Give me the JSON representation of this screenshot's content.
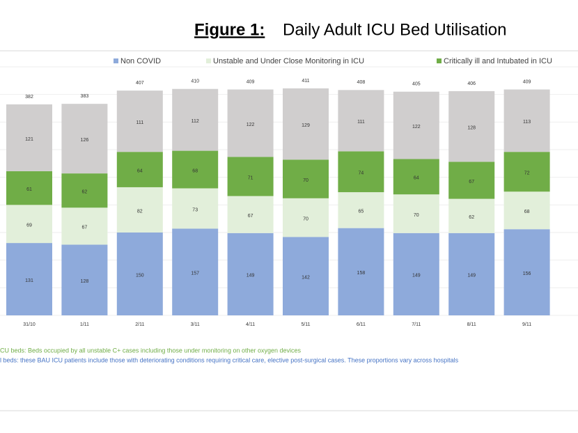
{
  "chart_data": {
    "type": "stacked_bar",
    "title_label": "Figure 1:",
    "title": "Daily Adult ICU Bed Utilisation",
    "categories": [
      "31/10",
      "1/11",
      "2/11",
      "3/11",
      "4/11",
      "5/11",
      "6/11",
      "7/11",
      "8/11",
      "9/11"
    ],
    "series": [
      {
        "name": "Non COVID",
        "color": "#8eaadb",
        "values": [
          131,
          128,
          150,
          157,
          149,
          142,
          158,
          149,
          149,
          156
        ]
      },
      {
        "name": "Unstable and Under Close Monitoring in ICU",
        "color": "#e2efda",
        "values": [
          69,
          67,
          82,
          73,
          67,
          70,
          65,
          70,
          62,
          68
        ]
      },
      {
        "name": "Critically ill and Intubated in ICU",
        "color": "#70ad47",
        "values": [
          61,
          62,
          64,
          68,
          71,
          70,
          74,
          64,
          67,
          72
        ]
      },
      {
        "color": "#d0cece",
        "values": [
          121,
          126,
          111,
          112,
          122,
          129,
          111,
          122,
          128,
          113
        ]
      }
    ],
    "totals": [
      382,
      383,
      407,
      410,
      409,
      411,
      408,
      405,
      406,
      409
    ],
    "ylim": [
      0,
      450
    ],
    "yticks": [
      0,
      50,
      100,
      150,
      200,
      250,
      300,
      350,
      400,
      450
    ],
    "grid": true,
    "notes": [
      {
        "text": "CU beds: Beds occupied by all unstable C+ cases including those under monitoring on other oxygen devices",
        "color": "#70ad47"
      },
      {
        "text": "l beds: these BAU ICU patients include those with deteriorating conditions requiring critical care, elective post-surgical cases. These proportions vary across hospitals",
        "color": "#4472c4"
      }
    ]
  }
}
